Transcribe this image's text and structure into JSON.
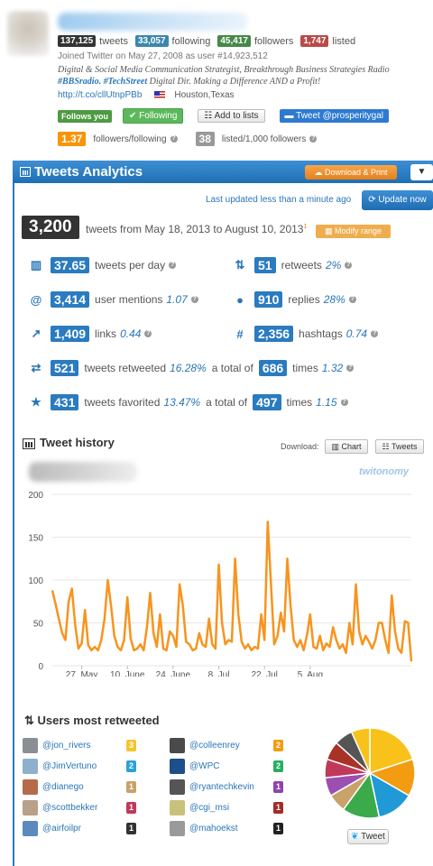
{
  "profile": {
    "tweets_count": "137,125",
    "tweets_label": "tweets",
    "following_count": "33,057",
    "following_label": "following",
    "followers_count": "45,417",
    "followers_label": "followers",
    "listed_count": "1,747",
    "listed_label": "listed",
    "joined": "Joined Twitter on May 27, 2008 as user #14,923,512",
    "bio_line1": "Digital & Social Media Communication Strategist, Breakthrough Business Strategies Radio",
    "bio_tag1": "#BBSradio.",
    "bio_tag2": "#TechStreet",
    "bio_line2_rest": "Digital Dir. Making a Difference AND a Profit!",
    "url": "http://t.co/cllUtnpPBb",
    "location": "Houston,Texas",
    "follows_you": "Follows you",
    "following_btn": "✔ Following",
    "add_to_lists": "Add to lists",
    "tweet_at": "Tweet @prosperitygal",
    "ratio_value": "1.37",
    "ratio_label": "followers/following",
    "listed_per": "38",
    "listed_per_label": "listed/1,000 followers"
  },
  "analytics": {
    "title": "Tweets Analytics",
    "download_print": "Download & Print",
    "updated": "Last updated less than a minute ago",
    "update_now": "Update now",
    "total_tweets": "3,200",
    "range": "tweets from May 18, 2013 to August 10, 2013",
    "range_note": "1",
    "modify_range": "Modify range",
    "metrics": {
      "per_day": {
        "value": "37.65",
        "label": "tweets per day"
      },
      "retweets": {
        "value": "51",
        "label": "retweets",
        "pct": "2%"
      },
      "mentions": {
        "value": "3,414",
        "label": "user mentions",
        "pct": "1.07"
      },
      "replies": {
        "value": "910",
        "label": "replies",
        "pct": "28%"
      },
      "links": {
        "value": "1,409",
        "label": "links",
        "pct": "0.44"
      },
      "hashtags": {
        "value": "2,356",
        "label": "hashtags",
        "pct": "0.74"
      },
      "retweeted": {
        "value": "521",
        "label": "tweets retweeted",
        "pct": "16.28%",
        "total_label": "a total of",
        "total": "686",
        "times_label": "times",
        "times": "1.32"
      },
      "favorited": {
        "value": "431",
        "label": "tweets favorited",
        "pct": "13.47%",
        "total_label": "a total of",
        "total": "497",
        "times_label": "times",
        "times": "1.15"
      }
    }
  },
  "history": {
    "title": "Tweet history",
    "download_label": "Download:",
    "chart_btn": "Chart",
    "tweets_btn": "Tweets",
    "watermark": "twitonomy"
  },
  "chart_data": {
    "type": "line",
    "title": "",
    "xlabel": "",
    "ylabel": "",
    "ylim": [
      0,
      200
    ],
    "yticks": [
      0,
      50,
      100,
      150,
      200
    ],
    "x_ticks": [
      "27. May",
      "10. June",
      "24. June",
      "8. Jul",
      "22. Jul",
      "5. Aug"
    ],
    "x_start": "2013-05-18",
    "series": [
      {
        "name": "",
        "color": "#f7941e",
        "values": [
          88,
          72,
          55,
          38,
          30,
          75,
          90,
          48,
          20,
          26,
          65,
          24,
          18,
          22,
          18,
          30,
          55,
          100,
          70,
          35,
          22,
          18,
          30,
          80,
          32,
          18,
          20,
          25,
          18,
          45,
          85,
          38,
          22,
          60,
          20,
          18,
          40,
          35,
          22,
          95,
          70,
          28,
          25,
          18,
          20,
          38,
          25,
          22,
          55,
          25,
          20,
          118,
          50,
          25,
          30,
          28,
          125,
          60,
          28,
          20,
          25,
          18,
          22,
          20,
          60,
          30,
          168,
          95,
          25,
          35,
          62,
          40,
          125,
          70,
          30,
          22,
          30,
          18,
          35,
          60,
          22,
          20,
          35,
          18,
          26,
          22,
          45,
          30,
          20,
          25,
          15,
          50,
          25,
          95,
          40,
          25,
          35,
          28,
          20,
          30,
          50,
          50,
          30,
          15,
          82,
          40,
          20,
          15,
          52,
          50,
          5
        ]
      }
    ]
  },
  "users": {
    "title": "Users most retweeted",
    "tweet_btn": "Tweet",
    "left": [
      {
        "name": "@jon_rivers",
        "count": "3",
        "color": "#f4c430",
        "avatar": "#8a8f96"
      },
      {
        "name": "@JimVertuno",
        "count": "2",
        "color": "#2aa1d8",
        "avatar": "#8fb0cc"
      },
      {
        "name": "@dianego",
        "count": "1",
        "color": "#c9a26a",
        "avatar": "#b56a4a"
      },
      {
        "name": "@scottbekker",
        "count": "1",
        "color": "#c0395a",
        "avatar": "#b8a08a"
      },
      {
        "name": "@airfoilpr",
        "count": "1",
        "color": "#333333",
        "avatar": "#5a8ac0"
      }
    ],
    "right": [
      {
        "name": "@colleenrey",
        "count": "2",
        "color": "#f39c12",
        "avatar": "#4a4a4a"
      },
      {
        "name": "@WPC",
        "count": "2",
        "color": "#27ae60",
        "avatar": "#1d4f8a"
      },
      {
        "name": "@ryantechkevin",
        "count": "1",
        "color": "#8e44ad",
        "avatar": "#555"
      },
      {
        "name": "@cgi_msi",
        "count": "1",
        "color": "#a52a2a",
        "avatar": "#c7c27a"
      },
      {
        "name": "@mahoekst",
        "count": "1",
        "color": "#222222",
        "avatar": "#9a9a9a"
      }
    ],
    "pie_colors": [
      "#f8c21a",
      "#f39c12",
      "#1f9ad6",
      "#3aaa4a",
      "#c9a26a",
      "#9b4fb0",
      "#c0395a",
      "#a93226",
      "#555555"
    ]
  }
}
